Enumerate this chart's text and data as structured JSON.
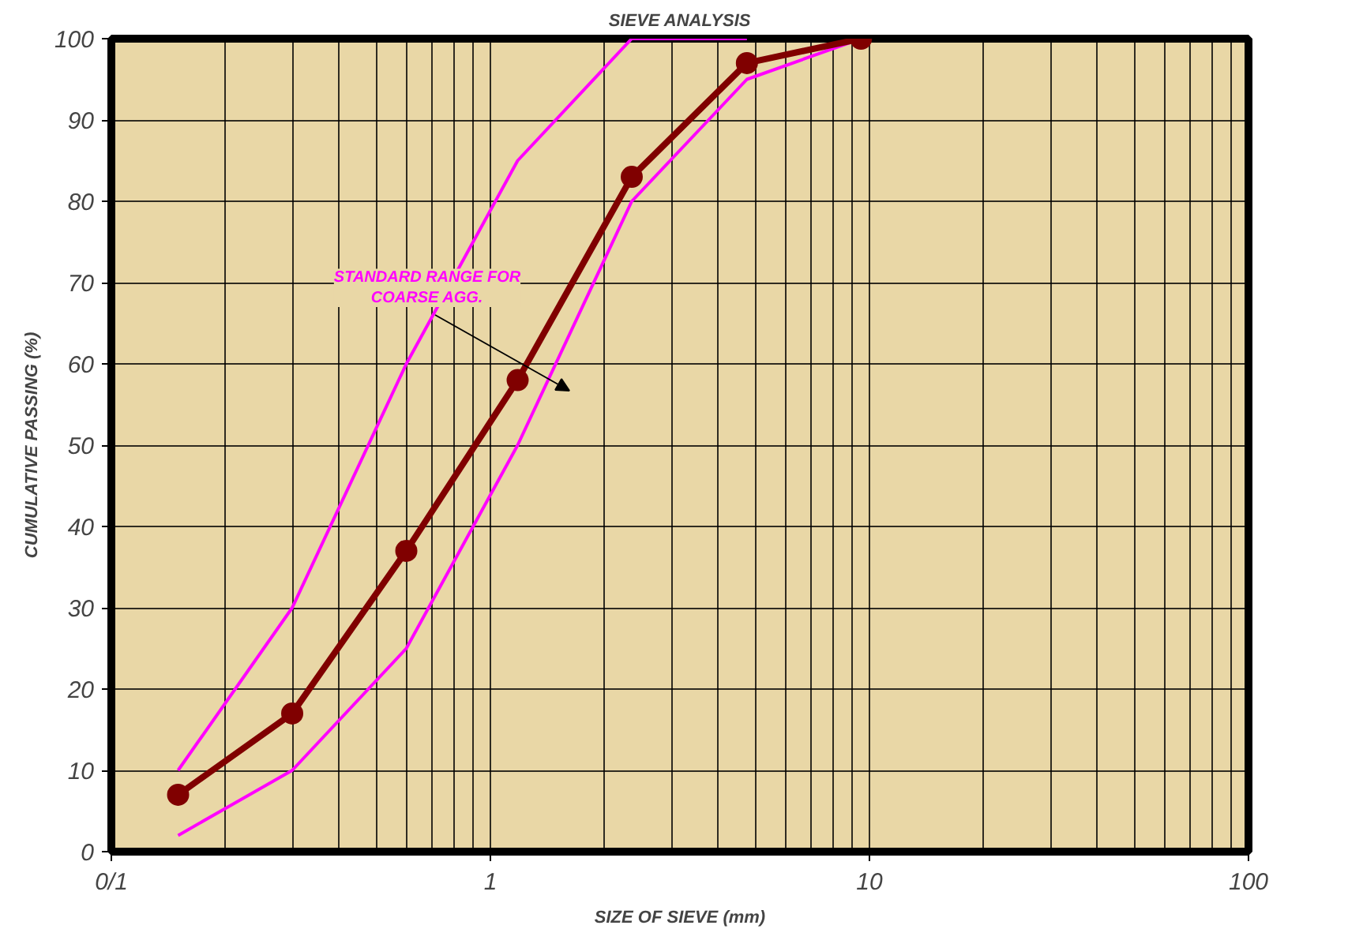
{
  "chart_data": {
    "type": "line",
    "title": "SIEVE ANALYSIS",
    "xlabel": "SIZE OF SIEVE (mm)",
    "ylabel": "CUMULATIVE PASSING (%)",
    "log": "x",
    "xlim": [
      0.1,
      100
    ],
    "xticks": [
      {
        "value": 0.1,
        "label": "0/1"
      },
      1,
      10,
      100
    ],
    "ylim": [
      0,
      100
    ],
    "yticks": [
      0,
      10,
      20,
      30,
      40,
      50,
      60,
      70,
      80,
      90,
      100
    ],
    "grid": true,
    "marker": "none",
    "line_style": "solid",
    "series": [
      {
        "color": "#ff00ff",
        "x": [
          0.15,
          0.3,
          0.6,
          1.18,
          2.36,
          4.75
        ],
        "values": [
          10,
          30,
          60,
          85,
          100,
          100
        ]
      },
      {
        "color": "#ff00ff",
        "x": [
          0.15,
          0.3,
          0.6,
          1.18,
          2.36,
          4.75,
          9.5
        ],
        "values": [
          2,
          10,
          25,
          50,
          80,
          95,
          100
        ]
      },
      {
        "color": "#800000",
        "marker": "circle",
        "x": [
          0.15,
          0.3,
          0.6,
          1.18,
          2.36,
          4.75,
          9.5
        ],
        "values": [
          7,
          17,
          37,
          58,
          83,
          97,
          100
        ]
      }
    ],
    "annotations": [
      "STANDARD RANGE FOR\nCOARSE AGG."
    ]
  }
}
